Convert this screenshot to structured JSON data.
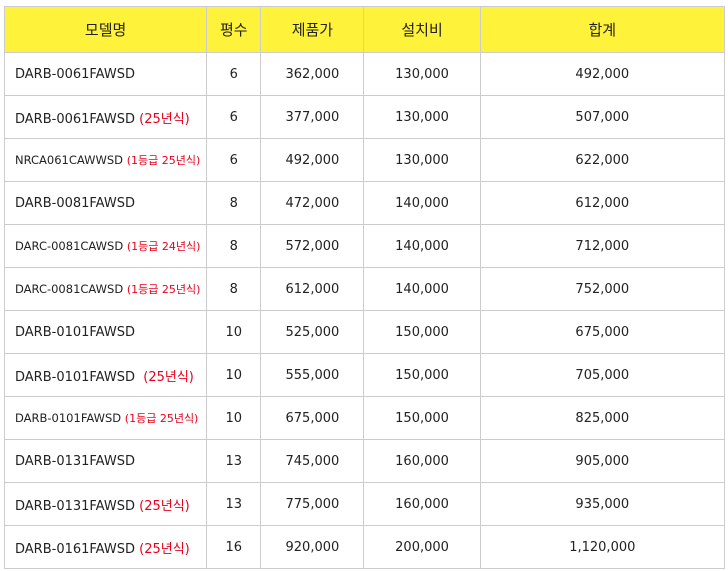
{
  "table": {
    "headers": {
      "model": "모델명",
      "size": "평수",
      "price": "제품가",
      "install": "설치비",
      "total": "합계"
    },
    "rows": [
      {
        "model": "DARB-0061FAWSD",
        "suffix": "",
        "size": "6",
        "price": "362,000",
        "install": "130,000",
        "total": "492,000"
      },
      {
        "model": "DARB-0061FAWSD",
        "suffix": "(25년식)",
        "size": "6",
        "price": "377,000",
        "install": "130,000",
        "total": "507,000"
      },
      {
        "model": "NRCA061CAWWSD",
        "suffix": "(1등급 25년식)",
        "size": "6",
        "price": "492,000",
        "install": "130,000",
        "total": "622,000"
      },
      {
        "model": "DARB-0081FAWSD",
        "suffix": "",
        "size": "8",
        "price": "472,000",
        "install": "140,000",
        "total": "612,000"
      },
      {
        "model": "DARC-0081CAWSD",
        "suffix": "(1등급 24년식)",
        "size": "8",
        "price": "572,000",
        "install": "140,000",
        "total": "712,000"
      },
      {
        "model": "DARC-0081CAWSD",
        "suffix": "(1등급 25년식)",
        "size": "8",
        "price": "612,000",
        "install": "140,000",
        "total": "752,000"
      },
      {
        "model": "DARB-0101FAWSD",
        "suffix": "",
        "size": "10",
        "price": "525,000",
        "install": "150,000",
        "total": "675,000"
      },
      {
        "model": "DARB-0101FAWSD",
        "suffix": "(25년식)",
        "size": "10",
        "price": "555,000",
        "install": "150,000",
        "total": "705,000"
      },
      {
        "model": "DARB-0101FAWSD",
        "suffix": "(1등급 25년식)",
        "size": "10",
        "price": "675,000",
        "install": "150,000",
        "total": "825,000"
      },
      {
        "model": "DARB-0131FAWSD",
        "suffix": "",
        "size": "13",
        "price": "745,000",
        "install": "160,000",
        "total": "905,000"
      },
      {
        "model": "DARB-0131FAWSD",
        "suffix": "(25년식)",
        "size": "13",
        "price": "775,000",
        "install": "160,000",
        "total": "935,000"
      },
      {
        "model": "DARB-0161FAWSD",
        "suffix": "(25년식)",
        "size": "16",
        "price": "920,000",
        "install": "200,000",
        "total": "1,120,000"
      }
    ]
  },
  "colors": {
    "header_bg": "#fff23a",
    "suffix_text": "#e8001c",
    "border": "#cccccc"
  }
}
